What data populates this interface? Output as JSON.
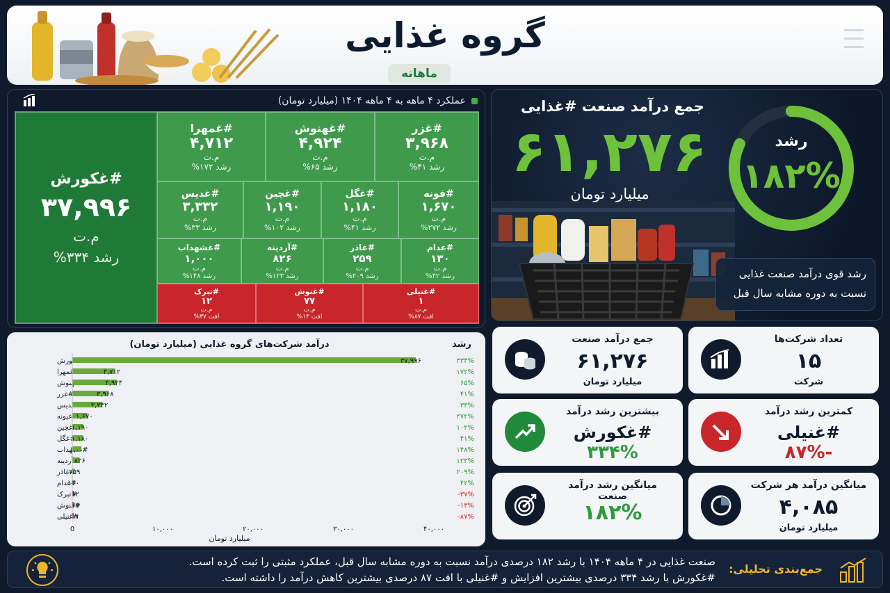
{
  "header": {
    "title": "گروه غذایی",
    "subtitle": "ماهانه"
  },
  "treemap": {
    "caption": "عملکرد ۴ ماهه به ۴ ماهه ۱۴۰۴ (میلیارد تومان)",
    "unit": "م.ت",
    "main": {
      "name": "#غکورش",
      "value": "۳۷,۹۹۶",
      "unit": "م.ت",
      "growth": "رشد ۳۳۴%"
    },
    "row1": [
      {
        "name": "#غزر",
        "value": "۳,۹۶۸",
        "unit": "م.ت",
        "growth": "رشد ۴۱%"
      },
      {
        "name": "#غهنوش",
        "value": "۴,۹۲۴",
        "unit": "م.ت",
        "growth": "رشد ۶۵%"
      },
      {
        "name": "#غمهرا",
        "value": "۴,۷۱۲",
        "unit": "م.ت",
        "growth": "رشد ۱۷۲%"
      }
    ],
    "row2": [
      {
        "name": "#فونه",
        "value": "۱,۶۷۰",
        "unit": "م.ت",
        "growth": "رشد ۲۷۲%"
      },
      {
        "name": "#غگل",
        "value": "۱,۱۸۰",
        "unit": "م.ت",
        "growth": "رشد ۴۱%"
      },
      {
        "name": "#غچین",
        "value": "۱,۱۹۰",
        "unit": "م.ت",
        "growth": "رشد ۱۰۲%"
      },
      {
        "name": "#غدیس",
        "value": "۳,۳۳۲",
        "unit": "م.ت",
        "growth": "رشد ۳۳%"
      }
    ],
    "row3": [
      {
        "name": "#غدام",
        "value": "۱۳۰",
        "unit": "م.ت",
        "growth": "رشد ۴۲%"
      },
      {
        "name": "#غاذر",
        "value": "۲۵۹",
        "unit": "م.ت",
        "growth": "رشد ۲۰۹%"
      },
      {
        "name": "#آردینه",
        "value": "۸۲۶",
        "unit": "م.ت",
        "growth": "رشد ۱۲۳%"
      },
      {
        "name": "#غشهداب",
        "value": "۱,۰۰۰",
        "unit": "م.ت",
        "growth": "رشد ۱۴۸%"
      }
    ],
    "row4": [
      {
        "name": "#غنیلی",
        "value": "۱",
        "unit": "م.ت",
        "growth": "افت ۸۷%"
      },
      {
        "name": "#غنوش",
        "value": "۷۷",
        "unit": "م.ت",
        "growth": "افت ۱۳%"
      },
      {
        "name": "#تبرک",
        "value": "۱۲",
        "unit": "م.ت",
        "growth": "افت ۳۷%"
      }
    ]
  },
  "hero": {
    "title": "جمع درآمد صنعت #غذایی",
    "value": "۶۱,۲۷۶",
    "unit": "میلیارد تومان",
    "ring_label": "رشد",
    "ring_value": "۱۸۲%",
    "ring_fraction": 0.82,
    "note_line1": "رشد قوی درآمد صنعت غذایی",
    "note_line2": "نسبت به دوره مشابه سال قبل"
  },
  "kpis": {
    "companies": {
      "label": "تعداد شرکت‌ها",
      "value": "۱۵",
      "sub": "شرکت"
    },
    "total": {
      "label": "جمع درآمد صنعت",
      "value": "۶۱,۲۷۶",
      "sub": "میلیارد تومان"
    },
    "lowest": {
      "label": "کمترین رشد درآمد",
      "name": "#غنیلی",
      "pct": "-۸۷%"
    },
    "highest": {
      "label": "بیشترین رشد درآمد",
      "name": "#غکورش",
      "pct": "۳۳۴%"
    },
    "avg_company": {
      "label": "میانگین درآمد هر شرکت",
      "value": "۴,۰۸۵",
      "sub": "میلیارد تومان"
    },
    "avg_growth": {
      "label": "میانگین رشد درآمد صنعت",
      "value": "۱۸۲%"
    }
  },
  "colors": {
    "green": "#3f9a4c",
    "dark_green": "#1f7a37",
    "red": "#c8262b",
    "accent_green": "#6ec13b",
    "navy": "#0f1b2d",
    "gold": "#f0b429"
  },
  "footer": {
    "label": "جمع‌بندی تحلیلی:",
    "line1": "صنعت غذایی در ۴ ماهه ۱۴۰۴ با رشد ۱۸۲ درصدی درآمد نسبت به دوره مشابه سال قبل، عملکرد مثبتی را ثبت کرده است.",
    "line2": "#غکورش با رشد ۳۳۴ درصدی بیشترین افزایش و #غنیلی با افت ۸۷ درصدی بیشترین کاهش درآمد را داشته است."
  },
  "chart_data": {
    "type": "bar",
    "orientation": "horizontal",
    "title": "درآمد شرکت‌های گروه غذایی (میلیارد تومان)",
    "growth_header": "رشد",
    "xlabel": "میلیارد تومان",
    "xlim": [
      0,
      40000
    ],
    "x_ticks": [
      0,
      10000,
      20000,
      30000,
      40000
    ],
    "x_tick_labels": [
      "0",
      "۱۰,۰۰۰",
      "۲۰,۰۰۰",
      "۳۰,۰۰۰",
      "۴۰,۰۰۰"
    ],
    "categories": [
      "#غکورش",
      "#غمهرا",
      "#غهنوش",
      "#غزر",
      "#غدیس",
      "#غیونه",
      "#غچین",
      "#غگل",
      "#غشهداب",
      "#آردینه",
      "#غاذر",
      "#غدام",
      "#تبرک",
      "#غنوش",
      "#غنیلی"
    ],
    "values": [
      37996,
      4712,
      4924,
      3968,
      3332,
      1670,
      1190,
      1180,
      1000,
      826,
      259,
      130,
      12,
      77,
      1
    ],
    "value_labels": [
      "۳۷,۹۹۶",
      "۴,۷۱۲",
      "۴,۹۲۴",
      "۳,۹۶۸",
      "۳,۳۳۲",
      "۱,۶۷۰",
      "۱,۱۹۰",
      "۱,۱۸۰",
      "۱,۰۰۰",
      "۸۲۶",
      "۲۵۹",
      "۱۳۰",
      "۱۲",
      "۷۷",
      "۱"
    ],
    "growth_labels": [
      "۳۳۴%",
      "۱۷۲%",
      "۶۵%",
      "۴۱%",
      "۳۳%",
      "۲۷۲%",
      "۱۰۲%",
      "۴۱%",
      "۱۴۸%",
      "۱۲۳%",
      "۲۰۹%",
      "۴۲%",
      "-۳۷%",
      "-۱۳%",
      "-۸۷%"
    ],
    "growth_values": [
      334,
      172,
      65,
      41,
      33,
      272,
      102,
      41,
      148,
      123,
      209,
      42,
      -37,
      -13,
      -87
    ],
    "grid": false
  }
}
